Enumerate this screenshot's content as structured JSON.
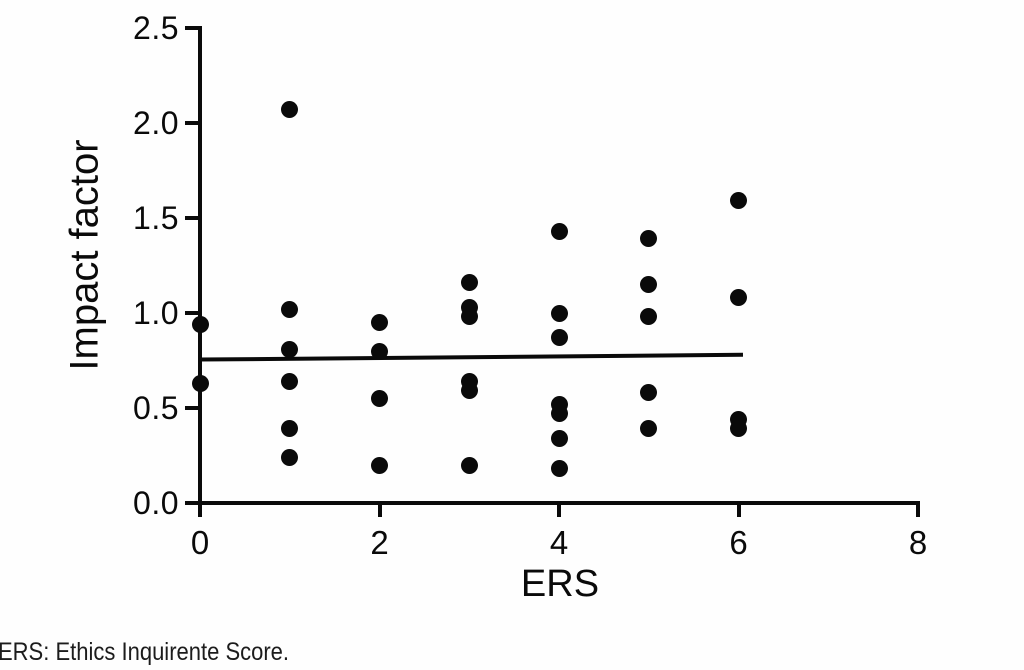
{
  "figure_caption": "ERS: Ethics Inquirente Score.",
  "colors": {
    "ink": "#0a0a0a",
    "background": "#fdfdfd",
    "caption_text": "#1c1c1c"
  },
  "chart_data": {
    "type": "scatter",
    "title": "",
    "xlabel": "ERS",
    "ylabel": "Impact factor",
    "xlim": [
      0,
      8
    ],
    "ylim": [
      0.0,
      2.5
    ],
    "x_ticks": [
      0,
      2,
      4,
      6,
      8
    ],
    "y_ticks": [
      0.0,
      0.5,
      1.0,
      1.5,
      2.0,
      2.5
    ],
    "grid": false,
    "legend": "none",
    "marker": "filled-black-circle",
    "points": [
      {
        "x": 0,
        "y": 0.94
      },
      {
        "x": 0,
        "y": 0.63
      },
      {
        "x": 1,
        "y": 2.07
      },
      {
        "x": 1,
        "y": 1.02
      },
      {
        "x": 1,
        "y": 0.81
      },
      {
        "x": 1,
        "y": 0.64
      },
      {
        "x": 1,
        "y": 0.39
      },
      {
        "x": 1,
        "y": 0.24
      },
      {
        "x": 2,
        "y": 0.95
      },
      {
        "x": 2,
        "y": 0.8
      },
      {
        "x": 2,
        "y": 0.55
      },
      {
        "x": 2,
        "y": 0.2
      },
      {
        "x": 3,
        "y": 1.16
      },
      {
        "x": 3,
        "y": 1.03
      },
      {
        "x": 3,
        "y": 0.98
      },
      {
        "x": 3,
        "y": 0.64
      },
      {
        "x": 3,
        "y": 0.59
      },
      {
        "x": 3,
        "y": 0.2
      },
      {
        "x": 4,
        "y": 1.43
      },
      {
        "x": 4,
        "y": 1.0
      },
      {
        "x": 4,
        "y": 0.87
      },
      {
        "x": 4,
        "y": 0.52
      },
      {
        "x": 4,
        "y": 0.47
      },
      {
        "x": 4,
        "y": 0.34
      },
      {
        "x": 4,
        "y": 0.18
      },
      {
        "x": 5,
        "y": 1.39
      },
      {
        "x": 5,
        "y": 1.15
      },
      {
        "x": 5,
        "y": 0.98
      },
      {
        "x": 5,
        "y": 0.58
      },
      {
        "x": 5,
        "y": 0.39
      },
      {
        "x": 6,
        "y": 1.59
      },
      {
        "x": 6,
        "y": 1.08
      },
      {
        "x": 6,
        "y": 0.44
      },
      {
        "x": 6,
        "y": 0.39
      }
    ],
    "fit_line": {
      "x_start": 0,
      "y_start": 0.755,
      "x_end": 6.05,
      "y_end": 0.78,
      "note": "near-flat regression line at impact factor ~0.76"
    }
  }
}
